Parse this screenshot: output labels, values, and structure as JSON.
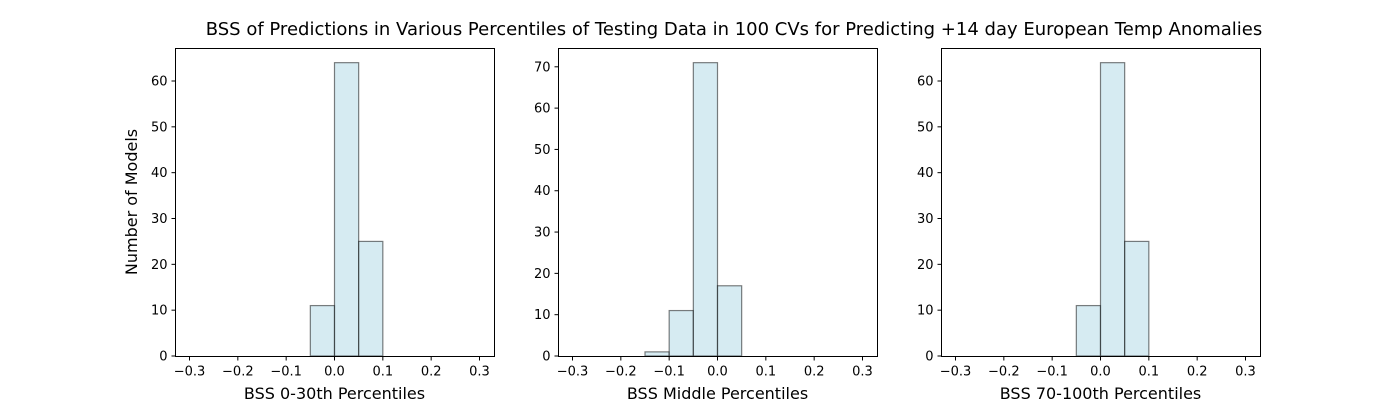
{
  "figure_title": "BSS of Predictions in Various Percentiles of Testing Data in 100 CVs for Predicting +14 day European Temp Anomalies",
  "bar_color": "#add8e6",
  "edge_color": "#000000",
  "chart_data": [
    {
      "type": "bar",
      "title": "",
      "xlabel": "BSS 0-30th Percentiles",
      "ylabel": "Number of Models",
      "xlim": [
        -0.33,
        0.33
      ],
      "ylim": [
        0,
        67.2
      ],
      "xticks": [
        "−0.3",
        "−0.2",
        "−0.1",
        "0.0",
        "0.1",
        "0.2",
        "0.3"
      ],
      "yticks": [
        "0",
        "10",
        "20",
        "30",
        "40",
        "50",
        "60"
      ],
      "bin_width": 0.05,
      "bins": [
        {
          "start": -0.05,
          "end": 0.0,
          "value": 11
        },
        {
          "start": 0.0,
          "end": 0.05,
          "value": 64
        },
        {
          "start": 0.05,
          "end": 0.1,
          "value": 25
        }
      ]
    },
    {
      "type": "bar",
      "title": "",
      "xlabel": "BSS Middle Percentiles",
      "ylabel": "",
      "xlim": [
        -0.33,
        0.33
      ],
      "ylim": [
        0,
        74.55
      ],
      "xticks": [
        "−0.3",
        "−0.2",
        "−0.1",
        "0.0",
        "0.1",
        "0.2",
        "0.3"
      ],
      "yticks": [
        "0",
        "10",
        "20",
        "30",
        "40",
        "50",
        "60",
        "70"
      ],
      "bin_width": 0.05,
      "bins": [
        {
          "start": -0.15,
          "end": -0.1,
          "value": 1
        },
        {
          "start": -0.1,
          "end": -0.05,
          "value": 11
        },
        {
          "start": -0.05,
          "end": 0.0,
          "value": 71
        },
        {
          "start": 0.0,
          "end": 0.05,
          "value": 17
        }
      ]
    },
    {
      "type": "bar",
      "title": "",
      "xlabel": "BSS 70-100th Percentiles",
      "ylabel": "",
      "xlim": [
        -0.33,
        0.33
      ],
      "ylim": [
        0,
        67.2
      ],
      "xticks": [
        "−0.3",
        "−0.2",
        "−0.1",
        "0.0",
        "0.1",
        "0.2",
        "0.3"
      ],
      "yticks": [
        "0",
        "10",
        "20",
        "30",
        "40",
        "50",
        "60"
      ],
      "bin_width": 0.05,
      "bins": [
        {
          "start": -0.05,
          "end": 0.0,
          "value": 11
        },
        {
          "start": 0.0,
          "end": 0.05,
          "value": 64
        },
        {
          "start": 0.05,
          "end": 0.1,
          "value": 25
        }
      ]
    }
  ]
}
